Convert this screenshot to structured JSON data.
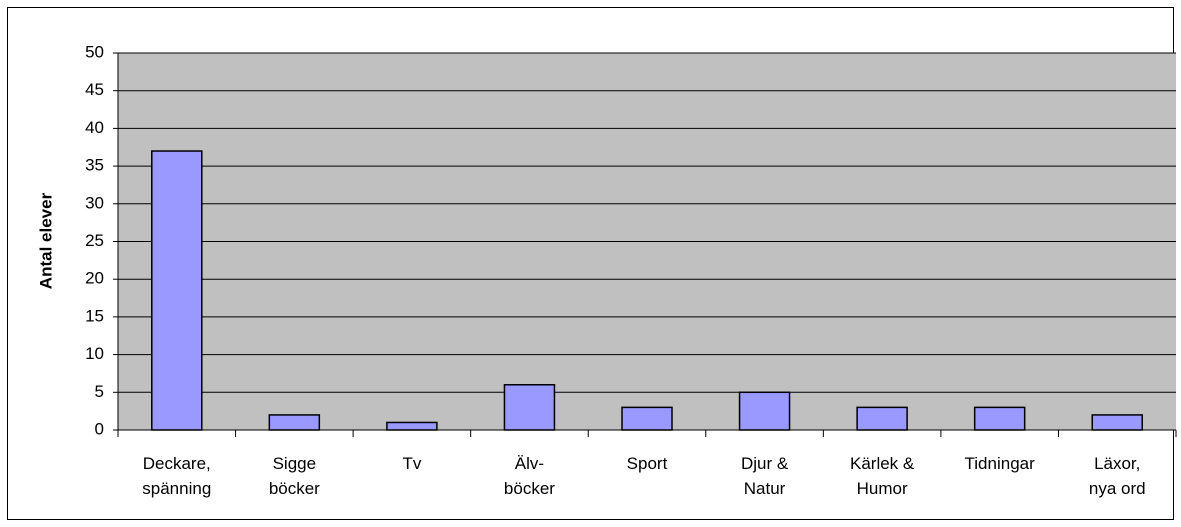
{
  "chart_data": {
    "type": "bar",
    "ylabel": "Antal elever",
    "categories": [
      "Deckare,\nspänning",
      "Sigge\nböcker",
      "Tv",
      "Älv-\nböcker",
      "Sport",
      "Djur &\nNatur",
      "Kärlek &\nHumor",
      "Tidningar",
      "Läxor,\nnya ord"
    ],
    "values": [
      37,
      2,
      1,
      6,
      3,
      5,
      3,
      3,
      2
    ],
    "color": "#9999ff",
    "ylim": [
      0,
      50
    ],
    "yticks": [
      0,
      5,
      10,
      15,
      20,
      25,
      30,
      35,
      40,
      45,
      50
    ],
    "grid": true
  }
}
